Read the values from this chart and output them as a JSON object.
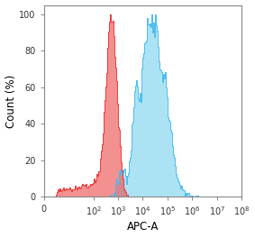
{
  "title": "",
  "xlabel": "APC-A",
  "ylabel": "Count (%)",
  "ylim": [
    0,
    105
  ],
  "yticks": [
    0,
    20,
    40,
    60,
    80,
    100
  ],
  "red_color": "#EE3333",
  "red_fill": "#EE5555",
  "blue_color": "#44BBEE",
  "blue_fill": "#66CCEE",
  "red_alpha": 0.65,
  "blue_alpha": 0.55,
  "background_color": "#ffffff",
  "plot_bg": "#ffffff",
  "spine_color": "#888888",
  "tick_color": "#333333",
  "label_fontsize": 8.5,
  "tick_fontsize": 7
}
